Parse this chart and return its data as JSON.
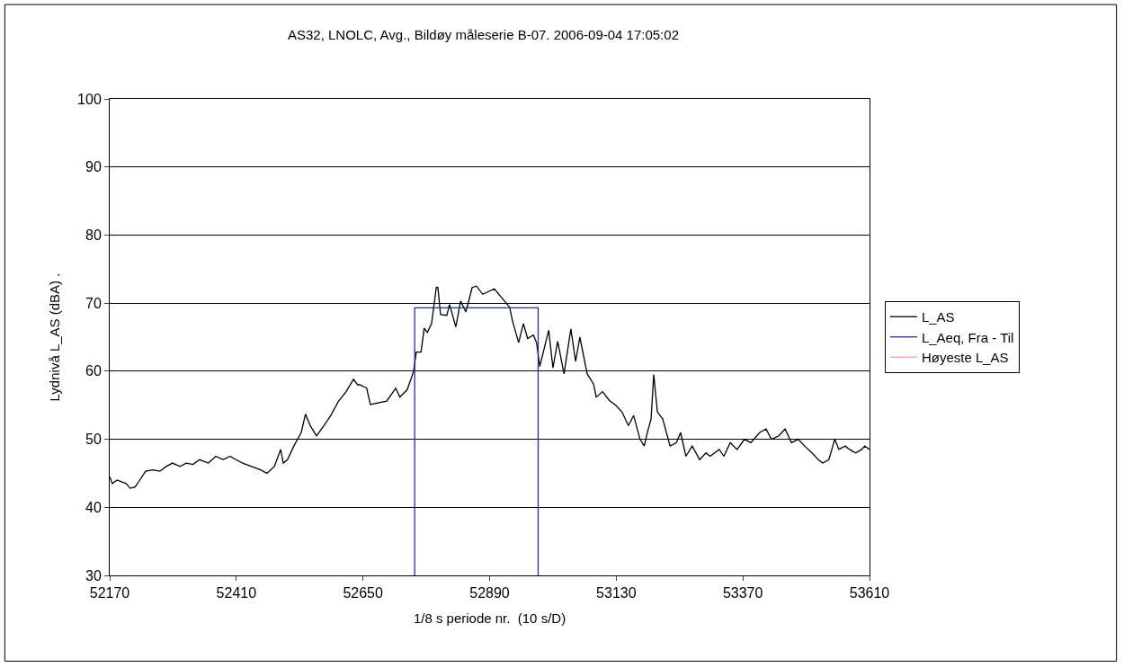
{
  "chart_data": {
    "type": "line",
    "title": "AS32, LNOLC, Avg., Bildøy måleserie B-07. 2006-09-04 17:05:02",
    "xlabel": "1/8 s periode nr.  (10 s/D)",
    "ylabel": "Lydnivå L_AS (dBA) .",
    "xlim": [
      52170,
      53610
    ],
    "xticks": [
      52170,
      52410,
      52650,
      52890,
      53130,
      53370,
      53610
    ],
    "ylim": [
      30,
      100
    ],
    "yticks": [
      30,
      40,
      50,
      60,
      70,
      80,
      90,
      100
    ],
    "grid": "y",
    "legend": "right",
    "marker": "none",
    "line_style": "solid",
    "series": [
      {
        "name": "L_AS",
        "color": "#000000",
        "x": [
          52170,
          52175,
          52184,
          52201,
          52209,
          52218,
          52227,
          52238,
          52252,
          52265,
          52277,
          52289,
          52303,
          52315,
          52328,
          52340,
          52357,
          52371,
          52385,
          52398,
          52409,
          52422,
          52439,
          52456,
          52468,
          52482,
          52494,
          52499,
          52507,
          52519,
          52533,
          52541,
          52550,
          52562,
          52576,
          52589,
          52603,
          52618,
          52632,
          52640,
          52644,
          52657,
          52664,
          52695,
          52712,
          52720,
          52734,
          52746,
          52751,
          52760,
          52766,
          52772,
          52780,
          52789,
          52792,
          52797,
          52809,
          52814,
          52826,
          52835,
          52845,
          52857,
          52865,
          52877,
          52899,
          52916,
          52928,
          52933,
          52945,
          52954,
          52962,
          52973,
          52979,
          52985,
          53002,
          53010,
          53019,
          53031,
          53044,
          53053,
          53061,
          53075,
          53087,
          53092,
          53104,
          53117,
          53129,
          53141,
          53153,
          53163,
          53175,
          53183,
          53189,
          53196,
          53201,
          53208,
          53218,
          53232,
          53244,
          53252,
          53262,
          53274,
          53288,
          53300,
          53308,
          53325,
          53334,
          53346,
          53359,
          53373,
          53385,
          53402,
          53414,
          53424,
          53438,
          53450,
          53462,
          53475,
          53487,
          53501,
          53513,
          53521,
          53533,
          53544,
          53552,
          53564,
          53572,
          53584,
          53595,
          53601,
          53610
        ],
        "values": [
          44.5,
          43.5,
          44,
          43.5,
          42.8,
          43,
          44,
          45.3,
          45.5,
          45.3,
          46,
          46.5,
          46,
          46.5,
          46.3,
          47,
          46.5,
          47.5,
          47,
          47.5,
          47,
          46.5,
          46,
          45.5,
          45,
          46,
          48.5,
          46.5,
          47,
          49,
          51,
          53.7,
          52,
          50.5,
          52,
          53.5,
          55.5,
          57,
          58.8,
          58,
          58,
          57.5,
          55.1,
          55.6,
          57.5,
          56.2,
          57.3,
          60,
          62.8,
          62.8,
          66.3,
          65.7,
          67,
          72.3,
          72.3,
          68.3,
          68.2,
          69.8,
          66.5,
          70.3,
          68.7,
          72.3,
          72.5,
          71.3,
          72.1,
          70.5,
          69.4,
          67.5,
          64.2,
          67,
          64.8,
          65.3,
          64.2,
          60.7,
          66,
          60.5,
          64.4,
          59.6,
          66.2,
          61.4,
          65,
          59.6,
          58.1,
          56.2,
          57,
          55.7,
          55,
          54,
          52,
          53.5,
          50,
          49,
          51,
          53,
          59.5,
          54,
          53,
          49,
          49.5,
          51,
          47.5,
          49,
          47,
          48,
          47.5,
          48.5,
          47.5,
          49.5,
          48.5,
          50,
          49.5,
          51,
          51.5,
          50,
          50.5,
          51.5,
          49.5,
          50,
          49,
          48,
          47,
          46.5,
          47,
          50,
          48.5,
          49,
          48.5,
          48,
          48.5,
          49,
          48.5
        ]
      },
      {
        "name": "L_Aeq, Fra - Til",
        "color": "#1f2f9f",
        "x": [
          52748,
          52748,
          52982,
          52982
        ],
        "values": [
          30,
          69.3,
          69.3,
          30
        ]
      },
      {
        "name": "Høyeste L_AS",
        "color": "#ff99cc",
        "values": [
          null
        ]
      }
    ]
  }
}
